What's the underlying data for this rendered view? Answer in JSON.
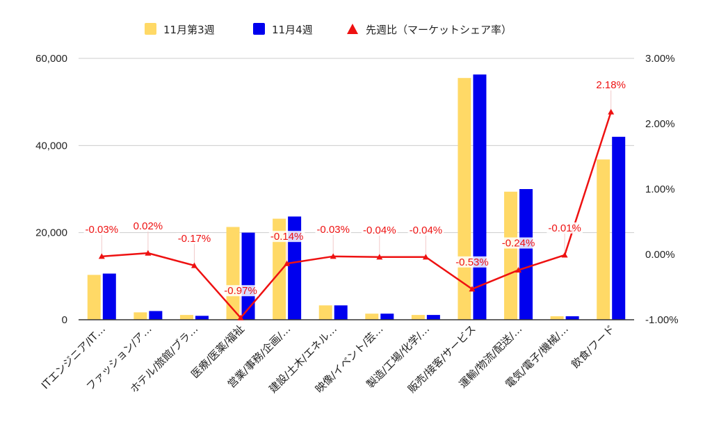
{
  "chart_data": {
    "type": "bar",
    "categories": [
      "ITエンジニア/IT…",
      "ファッション/ア…",
      "ホテル/旅館/ブラ…",
      "医療/医薬/福祉",
      "営業/事務/企画/…",
      "建設/土木/エネル…",
      "映像/イベント/芸…",
      "製造/工場/化学/…",
      "販売/接客/サービス",
      "運輸/物流/配送/…",
      "電気/電子/機械/…",
      "飲食/フード"
    ],
    "series": [
      {
        "name": "11月第3週",
        "kind": "bar",
        "axis": "left",
        "color": "#ffd966",
        "values": [
          10300,
          1700,
          1100,
          21300,
          23200,
          3300,
          1400,
          1100,
          55500,
          29400,
          800,
          36800
        ]
      },
      {
        "name": "11月4週",
        "kind": "bar",
        "axis": "left",
        "color": "#0000ee",
        "values": [
          10600,
          2000,
          900,
          20000,
          23700,
          3300,
          1400,
          1100,
          56300,
          30000,
          800,
          42000
        ]
      },
      {
        "name": "先週比（マーケットシェア率）",
        "kind": "line",
        "axis": "right",
        "color": "#ee1111",
        "values": [
          -0.03,
          0.02,
          -0.17,
          -0.97,
          -0.14,
          -0.03,
          -0.04,
          -0.04,
          -0.53,
          -0.24,
          -0.01,
          2.18
        ],
        "labels": [
          "-0.03%",
          "0.02%",
          "-0.17%",
          "-0.97%",
          "-0.14%",
          "-0.03%",
          "-0.04%",
          "-0.04%",
          "-0.53%",
          "-0.24%",
          "-0.01%",
          "2.18%"
        ]
      }
    ],
    "y_left": {
      "min": 0,
      "max": 60000,
      "ticks": [
        0,
        20000,
        40000,
        60000
      ],
      "tick_labels": [
        "0",
        "20,000",
        "40,000",
        "60,000"
      ]
    },
    "y_right": {
      "min": -1,
      "max": 3,
      "ticks": [
        -1,
        0,
        1,
        2,
        3
      ],
      "tick_labels": [
        "-1.00%",
        "0.00%",
        "1.00%",
        "2.00%",
        "3.00%"
      ]
    },
    "grid": true,
    "legend_position": "top-center"
  }
}
